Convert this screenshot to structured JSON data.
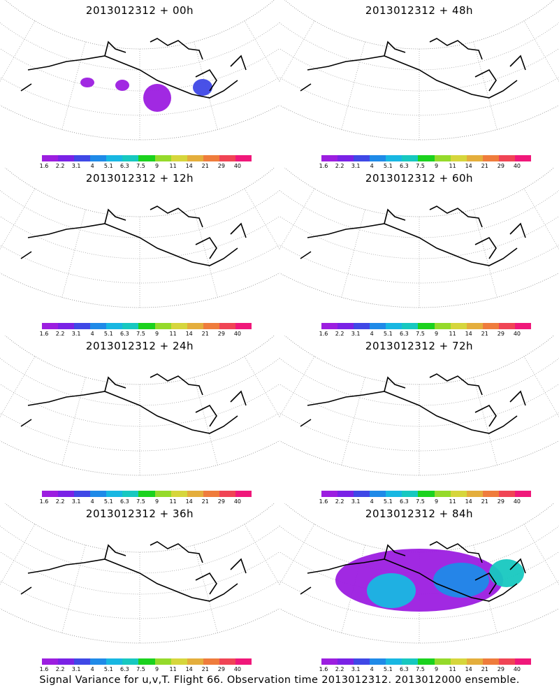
{
  "panels": [
    {
      "title": "2013012312 + 00h",
      "level": 0
    },
    {
      "title": "2013012312 + 48h",
      "level": 4
    },
    {
      "title": "2013012312 + 12h",
      "level": 1
    },
    {
      "title": "2013012312 + 60h",
      "level": 5
    },
    {
      "title": "2013012312 + 24h",
      "level": 2
    },
    {
      "title": "2013012312 + 72h",
      "level": 6
    },
    {
      "title": "2013012312 + 36h",
      "level": 3
    },
    {
      "title": "2013012312 + 84h",
      "level": 7
    }
  ],
  "colorbar": {
    "colors": [
      "#9c1ee0",
      "#7a22e6",
      "#3f48e6",
      "#1f8ae8",
      "#18b7e2",
      "#17c8c0",
      "#1bd21e",
      "#95da2b",
      "#d6d63c",
      "#e4ae3c",
      "#ef7c3c",
      "#f04455",
      "#f0187a"
    ],
    "labels": [
      "1.6",
      "2.2",
      "3.1",
      "4",
      "5.1",
      "6.3",
      "7.5",
      "9",
      "11",
      "14",
      "21",
      "29",
      "40"
    ]
  },
  "footer": "Signal Variance for u,v,T. Flight 66. Observation time 2013012312. 2013012000 ensemble."
}
